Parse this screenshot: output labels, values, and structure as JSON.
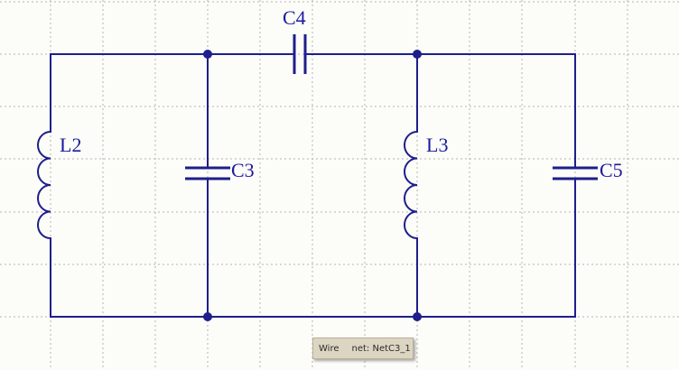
{
  "schematic": {
    "wire_color": "#1e1e8c",
    "label_color": "#1a1aa0",
    "grid_color": "#b4b4b4",
    "background": "#fcfcf8",
    "components": {
      "L2": "L2",
      "C3": "C3",
      "C4": "C4",
      "L3": "L3",
      "C5": "C5"
    }
  },
  "tooltip": {
    "object_type": "Wire",
    "net_label": "net: NetC3_1"
  }
}
